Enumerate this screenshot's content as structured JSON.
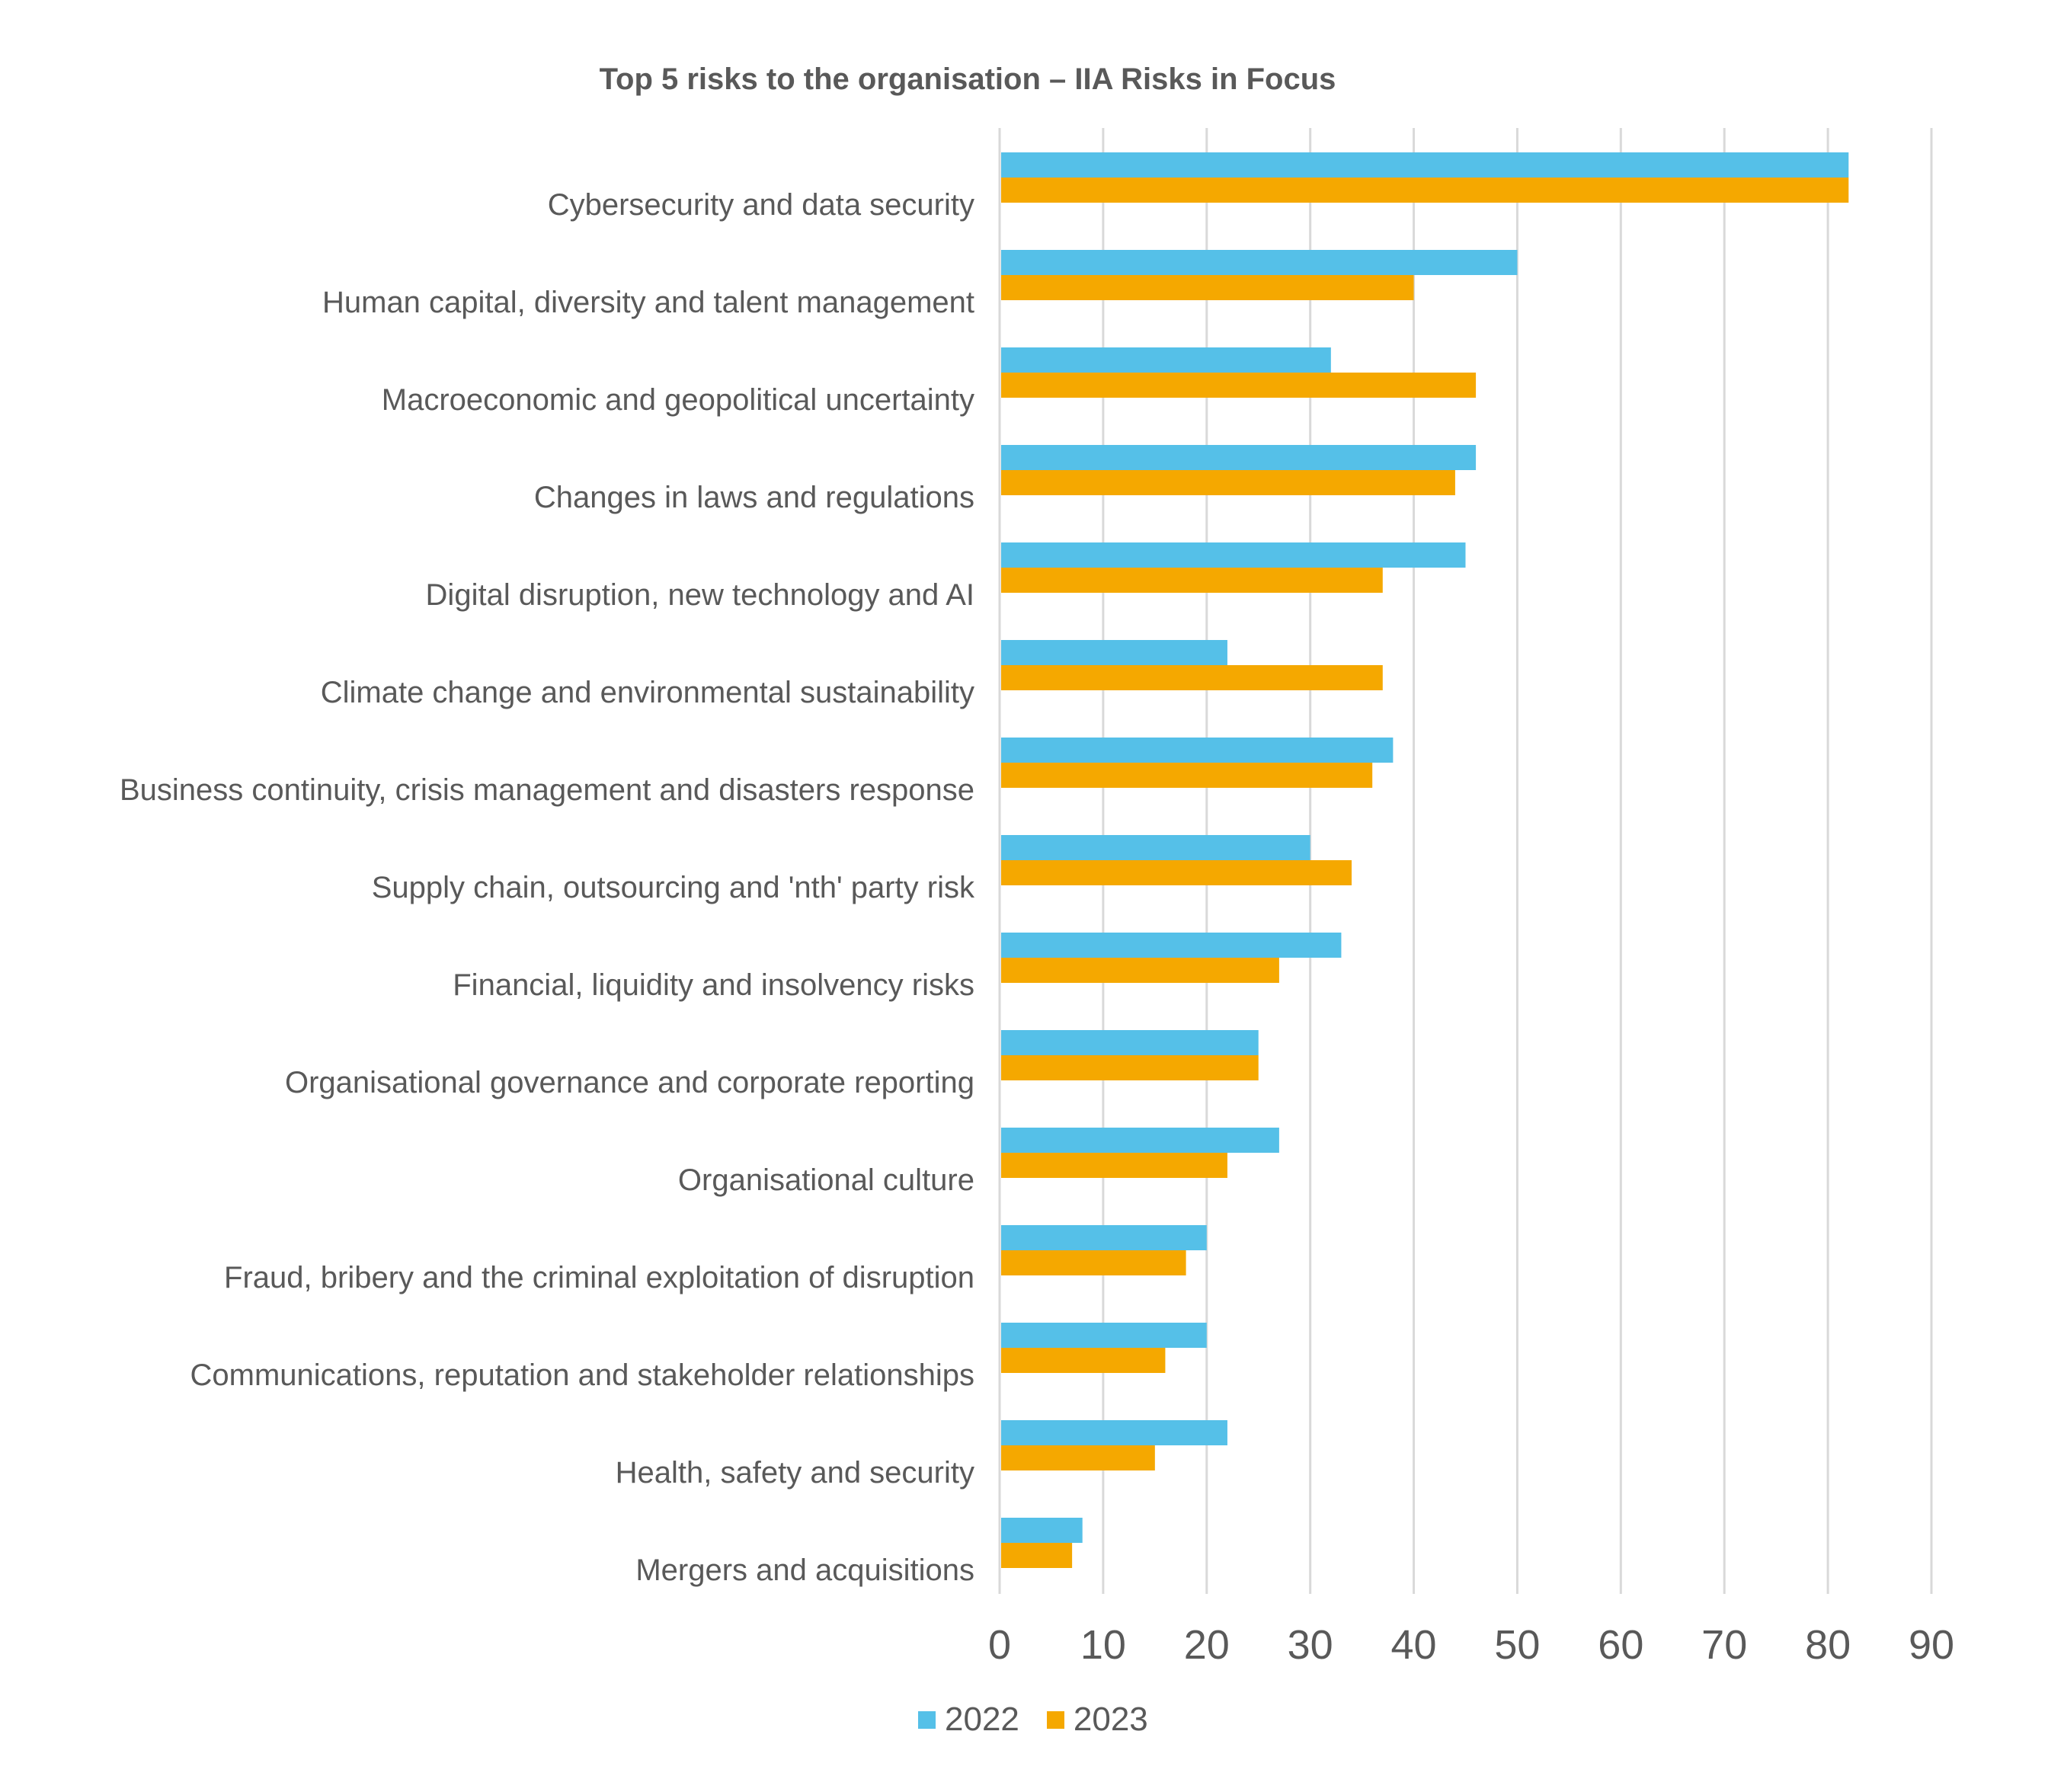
{
  "chart_data": {
    "type": "bar",
    "orientation": "horizontal",
    "title": "Top 5 risks to the organisation – IIA Risks in Focus",
    "xlabel": "",
    "ylabel": "",
    "xlim": [
      0,
      90
    ],
    "xticks": [
      "0",
      "10",
      "20",
      "30",
      "40",
      "50",
      "60",
      "70",
      "80",
      "90"
    ],
    "grid": "vertical",
    "legend": "bottom",
    "categories": [
      "Cybersecurity and data security",
      "Human capital, diversity and talent management",
      "Macroeconomic and geopolitical uncertainty",
      "Changes in laws and regulations",
      "Digital disruption, new technology and AI",
      "Climate change and environmental sustainability",
      "Business continuity, crisis management and disasters response",
      "Supply chain, outsourcing and 'nth' party risk",
      "Financial, liquidity and insolvency risks",
      "Organisational governance and corporate reporting",
      "Organisational culture",
      "Fraud, bribery and the criminal exploitation of disruption",
      "Communications, reputation and stakeholder relationships",
      "Health, safety and security",
      "Mergers and acquisitions"
    ],
    "series": [
      {
        "name": "2022",
        "color": "#55C0E8",
        "values": [
          82,
          50,
          32,
          46,
          45,
          22,
          38,
          30,
          33,
          25,
          27,
          20,
          20,
          22,
          8
        ]
      },
      {
        "name": "2023",
        "color": "#F5A800",
        "values": [
          82,
          40,
          46,
          44,
          37,
          37,
          36,
          34,
          27,
          25,
          22,
          18,
          16,
          15,
          7
        ]
      }
    ]
  }
}
